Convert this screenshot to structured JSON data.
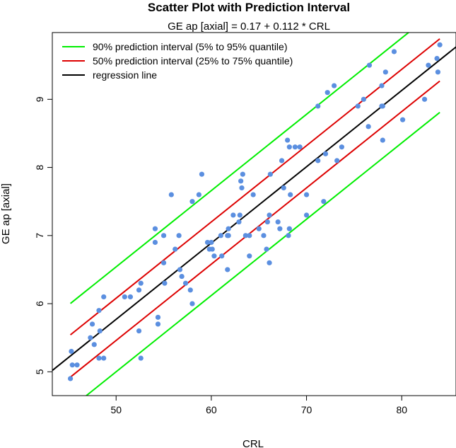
{
  "chart_data": {
    "type": "scatter",
    "title": "Scatter Plot with Prediction Interval",
    "subtitle": "GE ap [axial] = 0.17 + 0.112 * CRL",
    "xlabel": "CRL",
    "ylabel": "GE ap [axial]",
    "xlim": [
      43.3,
      85.7
    ],
    "ylim": [
      4.65,
      9.98
    ],
    "xticks": [
      50,
      60,
      70,
      80
    ],
    "yticks": [
      5,
      6,
      7,
      8,
      9
    ],
    "regression": {
      "intercept": 0.17,
      "slope": 0.112
    },
    "legend_position": "top-left",
    "series": [
      {
        "name": "90% prediction interval (5% to 95% quantile)",
        "color": "#00ee00",
        "line_offsets": [
          0.77,
          -0.77
        ],
        "x_range": [
          45.2,
          84
        ]
      },
      {
        "name": "50% prediction interval (25% to 75% quantile)",
        "color": "#dd0000",
        "line_offsets": [
          0.31,
          -0.31
        ],
        "x_range": [
          45.2,
          84
        ]
      },
      {
        "name": "regression line",
        "color": "#000000",
        "line_offsets": [
          0
        ],
        "x_range": [
          43.3,
          85.7
        ]
      }
    ],
    "point_color": "#5b8fe0",
    "points": [
      [
        45.2,
        4.9
      ],
      [
        45.3,
        5.3
      ],
      [
        45.4,
        5.1
      ],
      [
        45.9,
        5.1
      ],
      [
        47.3,
        5.5
      ],
      [
        47.5,
        5.7
      ],
      [
        47.7,
        5.4
      ],
      [
        48.2,
        5.2
      ],
      [
        48.2,
        5.9
      ],
      [
        48.3,
        5.6
      ],
      [
        48.7,
        5.2
      ],
      [
        48.7,
        6.1
      ],
      [
        50.9,
        6.1
      ],
      [
        51.5,
        6.1
      ],
      [
        52.4,
        5.6
      ],
      [
        52.4,
        6.2
      ],
      [
        52.6,
        6.3
      ],
      [
        52.6,
        5.2
      ],
      [
        54.1,
        7.1
      ],
      [
        54.1,
        6.9
      ],
      [
        54.4,
        5.8
      ],
      [
        54.4,
        5.7
      ],
      [
        55.0,
        7.0
      ],
      [
        55.0,
        6.6
      ],
      [
        55.1,
        6.3
      ],
      [
        55.8,
        7.6
      ],
      [
        56.2,
        6.8
      ],
      [
        56.6,
        7.0
      ],
      [
        56.7,
        6.5
      ],
      [
        56.9,
        6.4
      ],
      [
        57.3,
        6.3
      ],
      [
        57.8,
        6.2
      ],
      [
        58.0,
        6.0
      ],
      [
        58.0,
        7.5
      ],
      [
        58.7,
        7.6
      ],
      [
        59.0,
        7.9
      ],
      [
        59.6,
        6.9
      ],
      [
        59.8,
        6.8
      ],
      [
        60.0,
        6.9
      ],
      [
        60.1,
        6.8
      ],
      [
        60.3,
        6.7
      ],
      [
        61.0,
        7.0
      ],
      [
        61.1,
        6.7
      ],
      [
        61.7,
        6.5
      ],
      [
        61.7,
        7.0
      ],
      [
        61.8,
        7.0
      ],
      [
        61.8,
        7.1
      ],
      [
        62.3,
        7.3
      ],
      [
        62.9,
        7.2
      ],
      [
        63.0,
        7.3
      ],
      [
        63.1,
        7.8
      ],
      [
        63.2,
        7.7
      ],
      [
        63.3,
        7.9
      ],
      [
        63.6,
        7.0
      ],
      [
        64.0,
        7.0
      ],
      [
        64.0,
        6.7
      ],
      [
        64.4,
        7.6
      ],
      [
        65.0,
        7.1
      ],
      [
        65.5,
        7.0
      ],
      [
        65.8,
        6.8
      ],
      [
        65.9,
        7.2
      ],
      [
        66.1,
        7.3
      ],
      [
        66.1,
        6.6
      ],
      [
        66.2,
        7.9
      ],
      [
        67.0,
        7.2
      ],
      [
        67.2,
        7.1
      ],
      [
        67.4,
        8.1
      ],
      [
        67.6,
        7.7
      ],
      [
        68.0,
        8.4
      ],
      [
        68.1,
        7.0
      ],
      [
        68.2,
        7.1
      ],
      [
        68.2,
        8.3
      ],
      [
        68.3,
        7.6
      ],
      [
        68.8,
        8.3
      ],
      [
        69.3,
        8.3
      ],
      [
        70.0,
        7.3
      ],
      [
        70.0,
        7.6
      ],
      [
        71.2,
        8.1
      ],
      [
        71.2,
        8.9
      ],
      [
        71.8,
        7.5
      ],
      [
        72.0,
        8.2
      ],
      [
        72.2,
        9.1
      ],
      [
        72.9,
        9.2
      ],
      [
        73.2,
        8.1
      ],
      [
        73.7,
        8.3
      ],
      [
        75.4,
        8.9
      ],
      [
        76.0,
        9.0
      ],
      [
        76.5,
        8.6
      ],
      [
        76.6,
        9.5
      ],
      [
        77.9,
        8.9
      ],
      [
        77.9,
        9.2
      ],
      [
        78.0,
        8.9
      ],
      [
        78.0,
        8.4
      ],
      [
        78.3,
        9.4
      ],
      [
        79.2,
        9.7
      ],
      [
        80.1,
        8.7
      ],
      [
        82.4,
        9.0
      ],
      [
        82.8,
        9.5
      ],
      [
        83.7,
        9.6
      ],
      [
        83.8,
        9.4
      ],
      [
        84.0,
        9.8
      ]
    ]
  }
}
